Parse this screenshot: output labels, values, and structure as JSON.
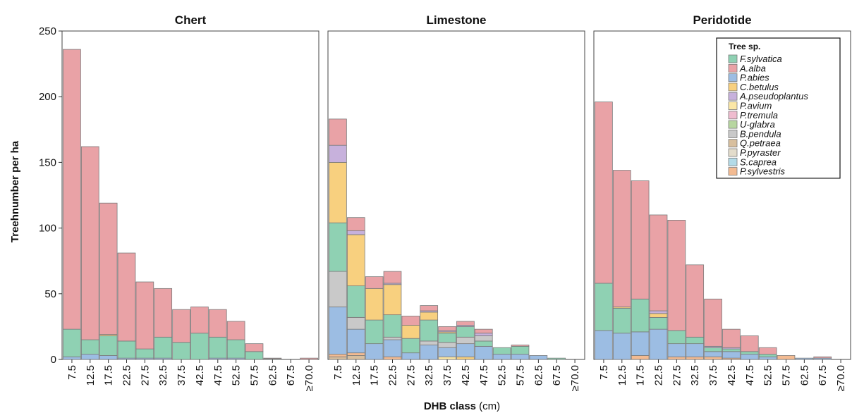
{
  "chart_data": {
    "type": "bar",
    "stacked": true,
    "ylabel": "Treehnumber per ha",
    "xlabel_bold": "DHB class",
    "xlabel_rest": " (cm)",
    "ylim": [
      0,
      250
    ],
    "yticks": [
      0,
      50,
      100,
      150,
      200,
      250
    ],
    "categories": [
      "7.5",
      "12.5",
      "17.5",
      "22.5",
      "27.5",
      "32.5",
      "37.5",
      "42.5",
      "47.5",
      "52.5",
      "57.5",
      "62.5",
      "67.5",
      "≥70.0"
    ],
    "legend": {
      "title": "Tree sp.",
      "position": "top-right"
    },
    "species": [
      {
        "name": "F.sylvatica",
        "color": "#8fd1b3"
      },
      {
        "name": "A.alba",
        "color": "#e9a2a6"
      },
      {
        "name": "P.abies",
        "color": "#9cbde3"
      },
      {
        "name": "C.betulus",
        "color": "#f8d07f"
      },
      {
        "name": "A.pseudoplantus",
        "color": "#c7b1dc"
      },
      {
        "name": "P.avium",
        "color": "#fbe7a6"
      },
      {
        "name": "P.tremula",
        "color": "#efbccf"
      },
      {
        "name": "U-glabra",
        "color": "#b7d6a0"
      },
      {
        "name": "B.pendula",
        "color": "#c9c9c9"
      },
      {
        "name": "Q.petraea",
        "color": "#d8bf9e"
      },
      {
        "name": "P.pyraster",
        "color": "#e3dccb"
      },
      {
        "name": "S.caprea",
        "color": "#b3dbe8"
      },
      {
        "name": "P.sylvestris",
        "color": "#f3bb92"
      }
    ],
    "panels": [
      {
        "title": "Chert",
        "bars": [
          [
            [
              "P.abies",
              2
            ],
            [
              "F.sylvatica",
              21
            ],
            [
              "A.alba",
              213
            ]
          ],
          [
            [
              "P.abies",
              4
            ],
            [
              "F.sylvatica",
              11
            ],
            [
              "A.alba",
              147
            ]
          ],
          [
            [
              "P.abies",
              3
            ],
            [
              "F.sylvatica",
              15
            ],
            [
              "C.betulus",
              1
            ],
            [
              "A.alba",
              100
            ]
          ],
          [
            [
              "P.abies",
              1
            ],
            [
              "F.sylvatica",
              13
            ],
            [
              "A.alba",
              67
            ]
          ],
          [
            [
              "P.abies",
              1
            ],
            [
              "F.sylvatica",
              7
            ],
            [
              "A.alba",
              51
            ]
          ],
          [
            [
              "P.abies",
              1
            ],
            [
              "F.sylvatica",
              16
            ],
            [
              "A.alba",
              37
            ]
          ],
          [
            [
              "F.sylvatica",
              13
            ],
            [
              "A.alba",
              25
            ]
          ],
          [
            [
              "F.sylvatica",
              20
            ],
            [
              "A.alba",
              20
            ]
          ],
          [
            [
              "P.abies",
              1
            ],
            [
              "F.sylvatica",
              16
            ],
            [
              "A.alba",
              21
            ]
          ],
          [
            [
              "P.abies",
              1
            ],
            [
              "F.sylvatica",
              14
            ],
            [
              "A.alba",
              14
            ]
          ],
          [
            [
              "F.sylvatica",
              6
            ],
            [
              "A.alba",
              6
            ]
          ],
          [
            [
              "F.sylvatica",
              0.5
            ],
            [
              "A.alba",
              0.5
            ]
          ],
          [],
          [
            [
              "A.alba",
              1
            ]
          ]
        ]
      },
      {
        "title": "Limestone",
        "bars": [
          [
            [
              "Q.petraea",
              2
            ],
            [
              "P.sylvestris",
              2
            ],
            [
              "P.abies",
              36
            ],
            [
              "B.pendula",
              27
            ],
            [
              "F.sylvatica",
              37
            ],
            [
              "C.betulus",
              46
            ],
            [
              "A.pseudoplantus",
              13
            ],
            [
              "A.alba",
              20
            ]
          ],
          [
            [
              "Q.petraea",
              3
            ],
            [
              "P.sylvestris",
              2
            ],
            [
              "P.abies",
              18
            ],
            [
              "B.pendula",
              9
            ],
            [
              "F.sylvatica",
              24
            ],
            [
              "C.betulus",
              39
            ],
            [
              "A.pseudoplantus",
              3
            ],
            [
              "A.alba",
              10
            ]
          ],
          [
            [
              "P.abies",
              12
            ],
            [
              "F.sylvatica",
              18
            ],
            [
              "C.betulus",
              24
            ],
            [
              "A.alba",
              9
            ]
          ],
          [
            [
              "P.sylvestris",
              2
            ],
            [
              "P.abies",
              13
            ],
            [
              "B.pendula",
              2
            ],
            [
              "F.sylvatica",
              17
            ],
            [
              "C.betulus",
              23
            ],
            [
              "A.pseudoplantus",
              1
            ],
            [
              "A.alba",
              9
            ]
          ],
          [
            [
              "P.abies",
              5
            ],
            [
              "F.sylvatica",
              11
            ],
            [
              "C.betulus",
              10
            ],
            [
              "A.alba",
              7
            ]
          ],
          [
            [
              "P.abies",
              11
            ],
            [
              "B.pendula",
              3
            ],
            [
              "F.sylvatica",
              16
            ],
            [
              "C.betulus",
              6
            ],
            [
              "A.pseudoplantus",
              1
            ],
            [
              "A.alba",
              4
            ]
          ],
          [
            [
              "P.avium",
              2
            ],
            [
              "P.abies",
              7
            ],
            [
              "B.pendula",
              4
            ],
            [
              "F.sylvatica",
              7
            ],
            [
              "C.betulus",
              1
            ],
            [
              "A.pseudoplantus",
              1
            ],
            [
              "A.alba",
              3
            ]
          ],
          [
            [
              "C.betulus",
              2
            ],
            [
              "P.abies",
              10
            ],
            [
              "B.pendula",
              5
            ],
            [
              "F.sylvatica",
              8
            ],
            [
              "A.pseudoplantus",
              1
            ],
            [
              "A.alba",
              3
            ]
          ],
          [
            [
              "P.abies",
              10
            ],
            [
              "F.sylvatica",
              4
            ],
            [
              "B.pendula",
              4
            ],
            [
              "A.pseudoplantus",
              2
            ],
            [
              "A.alba",
              3
            ]
          ],
          [
            [
              "P.abies",
              4
            ],
            [
              "F.sylvatica",
              5
            ]
          ],
          [
            [
              "P.abies",
              4
            ],
            [
              "F.sylvatica",
              6
            ],
            [
              "A.alba",
              1
            ]
          ],
          [
            [
              "P.abies",
              3
            ]
          ],
          [
            [
              "F.sylvatica",
              1
            ]
          ],
          []
        ]
      },
      {
        "title": "Peridotide",
        "bars": [
          [
            [
              "P.abies",
              22
            ],
            [
              "F.sylvatica",
              36
            ],
            [
              "A.alba",
              138
            ]
          ],
          [
            [
              "P.abies",
              20
            ],
            [
              "F.sylvatica",
              19
            ],
            [
              "C.betulus",
              1
            ],
            [
              "A.alba",
              104
            ]
          ],
          [
            [
              "P.sylvestris",
              3
            ],
            [
              "P.abies",
              18
            ],
            [
              "F.sylvatica",
              25
            ],
            [
              "A.alba",
              90
            ]
          ],
          [
            [
              "P.abies",
              23
            ],
            [
              "F.sylvatica",
              9
            ],
            [
              "C.betulus",
              3
            ],
            [
              "A.pseudoplantus",
              2
            ],
            [
              "A.alba",
              73
            ]
          ],
          [
            [
              "P.sylvestris",
              2
            ],
            [
              "P.abies",
              10
            ],
            [
              "F.sylvatica",
              10
            ],
            [
              "A.alba",
              84
            ]
          ],
          [
            [
              "P.sylvestris",
              2
            ],
            [
              "P.abies",
              10
            ],
            [
              "F.sylvatica",
              5
            ],
            [
              "A.alba",
              55
            ]
          ],
          [
            [
              "P.sylvestris",
              2
            ],
            [
              "P.abies",
              4
            ],
            [
              "F.sylvatica",
              3
            ],
            [
              "A.pseudoplantus",
              1
            ],
            [
              "A.alba",
              36
            ]
          ],
          [
            [
              "P.sylvestris",
              1
            ],
            [
              "P.abies",
              5
            ],
            [
              "F.sylvatica",
              2
            ],
            [
              "A.pseudoplantus",
              1
            ],
            [
              "A.alba",
              14
            ]
          ],
          [
            [
              "P.abies",
              4
            ],
            [
              "F.sylvatica",
              2
            ],
            [
              "A.alba",
              12
            ]
          ],
          [
            [
              "P.abies",
              2
            ],
            [
              "F.sylvatica",
              2
            ],
            [
              "A.alba",
              5
            ]
          ],
          [
            [
              "P.sylvestris",
              3
            ]
          ],
          [
            [
              "P.abies",
              1
            ]
          ],
          [
            [
              "P.abies",
              1
            ],
            [
              "A.alba",
              1
            ]
          ],
          []
        ]
      }
    ]
  }
}
